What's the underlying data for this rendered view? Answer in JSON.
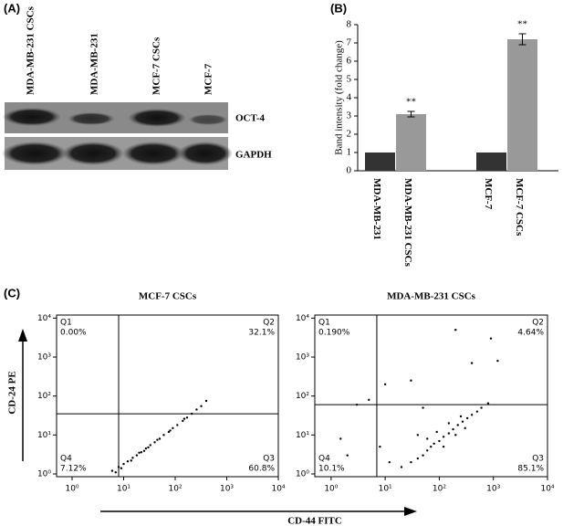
{
  "panels": [
    "(A)",
    "(B)",
    "(C)"
  ],
  "blot": {
    "lanes": [
      "MDA-MB-231 CSCs",
      "MDA-MB-231",
      "MCF-7 CSCs",
      "MCF-7"
    ],
    "rows": [
      "OCT-4",
      "GAPDH"
    ]
  },
  "chart_data": [
    {
      "type": "bar",
      "ylabel": "Band intensity (fold change)",
      "categories": [
        "MDA-MB-231",
        "MDA-MB-231 CSCs",
        "MCF-7",
        "MCF-7 CSCs"
      ],
      "values": [
        1,
        3.1,
        1,
        7.2
      ],
      "errors": [
        null,
        0.15,
        null,
        0.3
      ],
      "colors": [
        "#333333",
        "#999999",
        "#333333",
        "#999999"
      ],
      "annotations": [
        {
          "text": "**",
          "category": "MDA-MB-231 CSCs"
        },
        {
          "text": "**",
          "category": "MCF-7 CSCs"
        }
      ],
      "ylim": [
        0,
        8
      ],
      "yticks": [
        0,
        1,
        2,
        3,
        4,
        5,
        6,
        7,
        8
      ]
    },
    {
      "type": "scatter",
      "title": "MCF-7 CSCs",
      "xlog": true,
      "ylog": true,
      "xlim": [
        0.5,
        10000
      ],
      "ylim": [
        0.85,
        12000
      ],
      "xticks": [
        {
          "value": 1,
          "label": "10⁰"
        },
        {
          "value": 10,
          "label": "10¹"
        },
        {
          "value": 100,
          "label": "10²"
        },
        {
          "value": 1000,
          "label": "10³"
        },
        {
          "value": 10000,
          "label": "10⁴"
        }
      ],
      "yticks": [
        {
          "value": 1,
          "label": "10⁰"
        },
        {
          "value": 10,
          "label": "10¹"
        },
        {
          "value": 100,
          "label": "10²"
        },
        {
          "value": 1000,
          "label": "10³"
        },
        {
          "value": 10000,
          "label": "10⁴"
        }
      ],
      "gates": {
        "x": 8,
        "y": 35
      },
      "quadrants": [
        {
          "name": "Q1",
          "label": "0.00%"
        },
        {
          "name": "Q2",
          "label": "32.1%"
        },
        {
          "name": "Q3",
          "label": "60.8%"
        },
        {
          "name": "Q4",
          "label": "7.12%"
        }
      ],
      "x": [
        6,
        8,
        10,
        12,
        15,
        18,
        22,
        27,
        33,
        40,
        50,
        60,
        75,
        90,
        110,
        140,
        170,
        210,
        260,
        320,
        400,
        9,
        14,
        25,
        45,
        80,
        150,
        7,
        20,
        30
      ],
      "y": [
        1.2,
        1.5,
        1.8,
        2.1,
        2.6,
        3,
        3.6,
        4.5,
        5.5,
        6.5,
        8,
        10,
        12,
        15,
        18,
        23,
        28,
        35,
        45,
        55,
        75,
        1.4,
        2.2,
        3.9,
        7.5,
        13,
        26,
        1.1,
        3.5,
        4.8
      ]
    },
    {
      "type": "scatter",
      "title": "MDA-MB-231 CSCs",
      "xlog": true,
      "ylog": true,
      "xlim": [
        0.5,
        10000
      ],
      "ylim": [
        0.85,
        12000
      ],
      "xticks": [
        {
          "value": 1,
          "label": "10⁰"
        },
        {
          "value": 10,
          "label": "10¹"
        },
        {
          "value": 100,
          "label": "10²"
        },
        {
          "value": 1000,
          "label": "10³"
        },
        {
          "value": 10000,
          "label": "10⁴"
        }
      ],
      "yticks": [
        {
          "value": 1,
          "label": "10⁰"
        },
        {
          "value": 10,
          "label": "10¹"
        },
        {
          "value": 100,
          "label": "10²"
        },
        {
          "value": 1000,
          "label": "10³"
        },
        {
          "value": 10000,
          "label": "10⁴"
        }
      ],
      "gates": {
        "x": 7,
        "y": 60
      },
      "quadrants": [
        {
          "name": "Q1",
          "label": "0.190%"
        },
        {
          "name": "Q2",
          "label": "4.64%"
        },
        {
          "name": "Q3",
          "label": "85.1%"
        },
        {
          "name": "Q4",
          "label": "10.1%"
        }
      ],
      "x": [
        20,
        30,
        40,
        50,
        60,
        70,
        80,
        100,
        120,
        150,
        180,
        220,
        270,
        330,
        400,
        500,
        600,
        800,
        60,
        90,
        120,
        200,
        300,
        150,
        250,
        5,
        3,
        10,
        30,
        2,
        1.5,
        8,
        12,
        40,
        400,
        900,
        200,
        50,
        1200
      ],
      "y": [
        1.5,
        2,
        2.5,
        3,
        4,
        5,
        6,
        7,
        9,
        11,
        14,
        18,
        22,
        27,
        33,
        40,
        50,
        65,
        8,
        12,
        5,
        10,
        15,
        20,
        30,
        80,
        60,
        200,
        250,
        3,
        8,
        5,
        2,
        10,
        700,
        3000,
        5000,
        50,
        800
      ]
    }
  ],
  "axis_labels": {
    "y": "CD-24 PE",
    "x": "CD-44 FITC"
  }
}
